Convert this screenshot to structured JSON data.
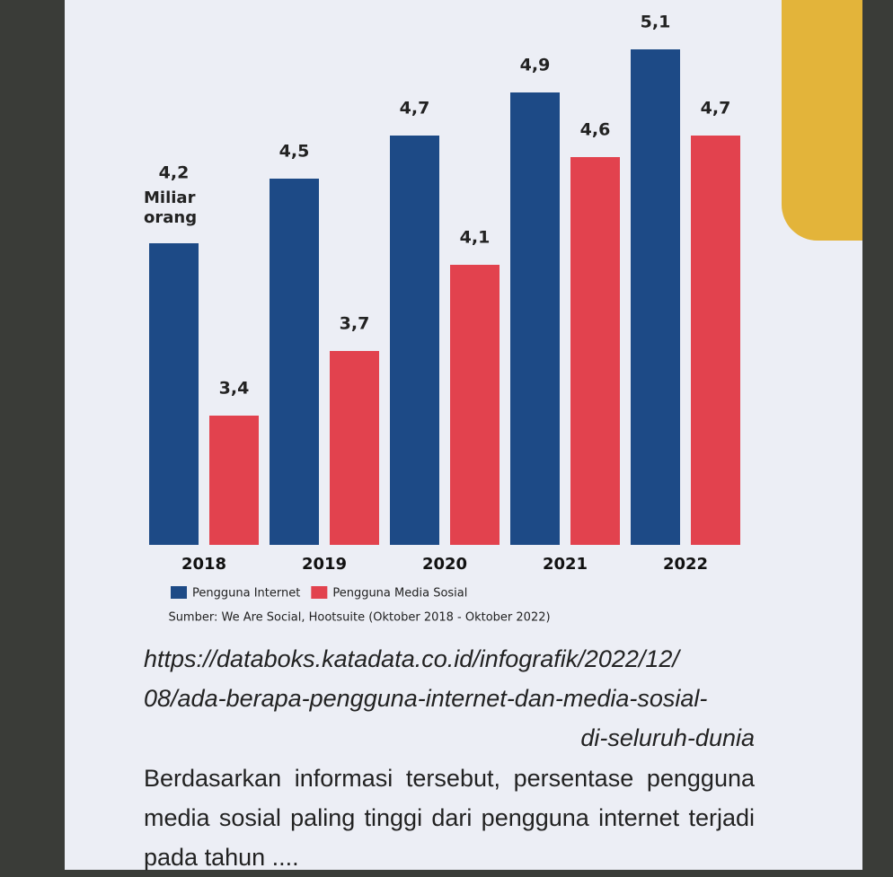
{
  "chart_data": {
    "type": "bar",
    "annotation": "Miliar orang",
    "categories": [
      "2018",
      "2019",
      "2020",
      "2021",
      "2022"
    ],
    "series": [
      {
        "name": "Pengguna Internet",
        "color": "#1d4a86",
        "values": [
          4.2,
          4.5,
          4.7,
          4.9,
          5.1
        ],
        "value_labels": [
          "4,2",
          "4,5",
          "4,7",
          "4,9",
          "5,1"
        ]
      },
      {
        "name": "Pengguna Media Sosial",
        "color": "#e2424e",
        "values": [
          3.4,
          3.7,
          4.1,
          4.6,
          4.7
        ],
        "value_labels": [
          "3,4",
          "3,7",
          "4,1",
          "4,6",
          "4,7"
        ]
      }
    ],
    "ylim": [
      2.8,
      5.2
    ],
    "source": "Sumber: We Are Social, Hootsuite (Oktober 2018 - Oktober 2022)"
  },
  "url_lines": [
    "https://databoks.katadata.co.id/infografik/2022/12/",
    "08/ada-berapa-pengguna-internet-dan-media-sosial-",
    "di-seluruh-dunia"
  ],
  "question": "Berdasarkan informasi tersebut, persentase pengguna media sosial paling tinggi dari pengguna internet terjadi pada tahun ...."
}
